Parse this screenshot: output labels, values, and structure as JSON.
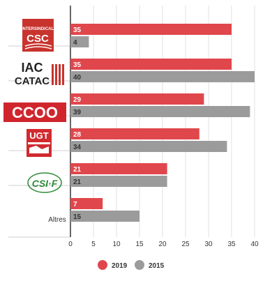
{
  "chart_data": {
    "type": "bar",
    "orientation": "horizontal",
    "categories": [
      "INTERSINDICAL CSC",
      "IAC CATAC",
      "CCOO",
      "UGT",
      "CSI-F",
      "Altres"
    ],
    "series": [
      {
        "name": "2019",
        "values": [
          35,
          35,
          29,
          28,
          21,
          7
        ],
        "color": "#e0474c"
      },
      {
        "name": "2015",
        "values": [
          4,
          40,
          39,
          34,
          21,
          15
        ],
        "color": "#9b9b9b"
      }
    ],
    "xticks": [
      "0",
      "5",
      "10",
      "15",
      "20",
      "25",
      "30",
      "35",
      "40"
    ],
    "xlim": [
      0,
      40
    ],
    "grid": true,
    "legend_placement": "bottom-center",
    "value_labels": true
  },
  "logos": {
    "intersindical_line1": "INTERSINDICAL",
    "intersindical_line2": "CSC",
    "iac_line1": "IAC",
    "iac_line2": "CATAC",
    "ccoo": "CCOO",
    "ugt": "UGT",
    "csif": "CSI·F",
    "altres": "Altres"
  },
  "legend": {
    "label_2019": "2019",
    "label_2015": "2015"
  }
}
